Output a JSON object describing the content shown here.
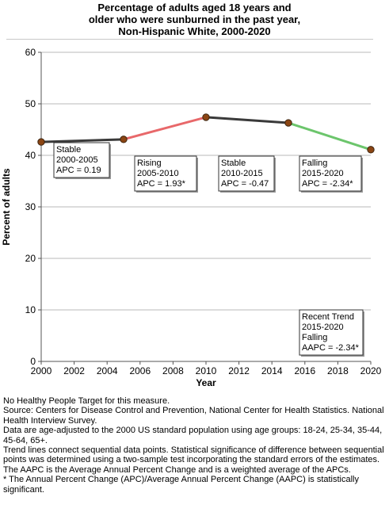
{
  "header": {
    "title_lines": [
      "Percentage of adults aged 18 years and",
      "older who were sunburned in the past year,",
      "Non-Hispanic White,  2000-2020"
    ]
  },
  "chart_data": {
    "type": "line",
    "xlabel": "Year",
    "ylabel": "Percent of adults",
    "xlim": [
      2000,
      2020
    ],
    "ylim": [
      0,
      60
    ],
    "x_ticks": [
      2000,
      2002,
      2004,
      2006,
      2008,
      2010,
      2012,
      2014,
      2016,
      2018,
      2020
    ],
    "y_ticks": [
      0,
      10,
      20,
      30,
      40,
      50,
      60
    ],
    "grid": "horizontal",
    "points": [
      {
        "x": 2000,
        "y": 42.6
      },
      {
        "x": 2005,
        "y": 43.1
      },
      {
        "x": 2010,
        "y": 47.4
      },
      {
        "x": 2015,
        "y": 46.3
      },
      {
        "x": 2020,
        "y": 41.1
      }
    ],
    "point_color": "#8b4513",
    "segments": [
      {
        "from": 2000,
        "to": 2005,
        "trend": "Stable",
        "color": "#3a3a3a",
        "label_lines": [
          "Stable",
          "2000-2005",
          "APC =  0.19"
        ]
      },
      {
        "from": 2005,
        "to": 2010,
        "trend": "Rising",
        "color": "#e8686a",
        "label_lines": [
          "Rising",
          "2005-2010",
          "APC =  1.93*"
        ]
      },
      {
        "from": 2010,
        "to": 2015,
        "trend": "Stable",
        "color": "#3a3a3a",
        "label_lines": [
          "Stable",
          "2010-2015",
          "APC = -0.47"
        ]
      },
      {
        "from": 2015,
        "to": 2020,
        "trend": "Falling",
        "color": "#6cc56c",
        "label_lines": [
          "Falling",
          "2015-2020",
          "APC = -2.34*"
        ]
      }
    ],
    "recent_trend": {
      "label_lines": [
        "Recent Trend",
        "2015-2020",
        "Falling",
        "AAPC = -2.34*"
      ]
    }
  },
  "footnotes": [
    "No Healthy People Target for this measure.",
    "Source: Centers for Disease Control and Prevention, National Center for Health Statistics. National Health Interview Survey.",
    "Data are age-adjusted to the 2000 US standard population using age groups: 18-24, 25-34, 35-44, 45-64, 65+.",
    "Trend lines connect sequential data points. Statistical significance of difference between sequential points was determined using a two-sample test incorporating the standard errors of the estimates.",
    "The AAPC is the Average Annual Percent Change and is a weighted average of the APCs.",
    "* The Annual Percent Change (APC)/Average Annual Percent Change (AAPC) is statistically significant."
  ]
}
